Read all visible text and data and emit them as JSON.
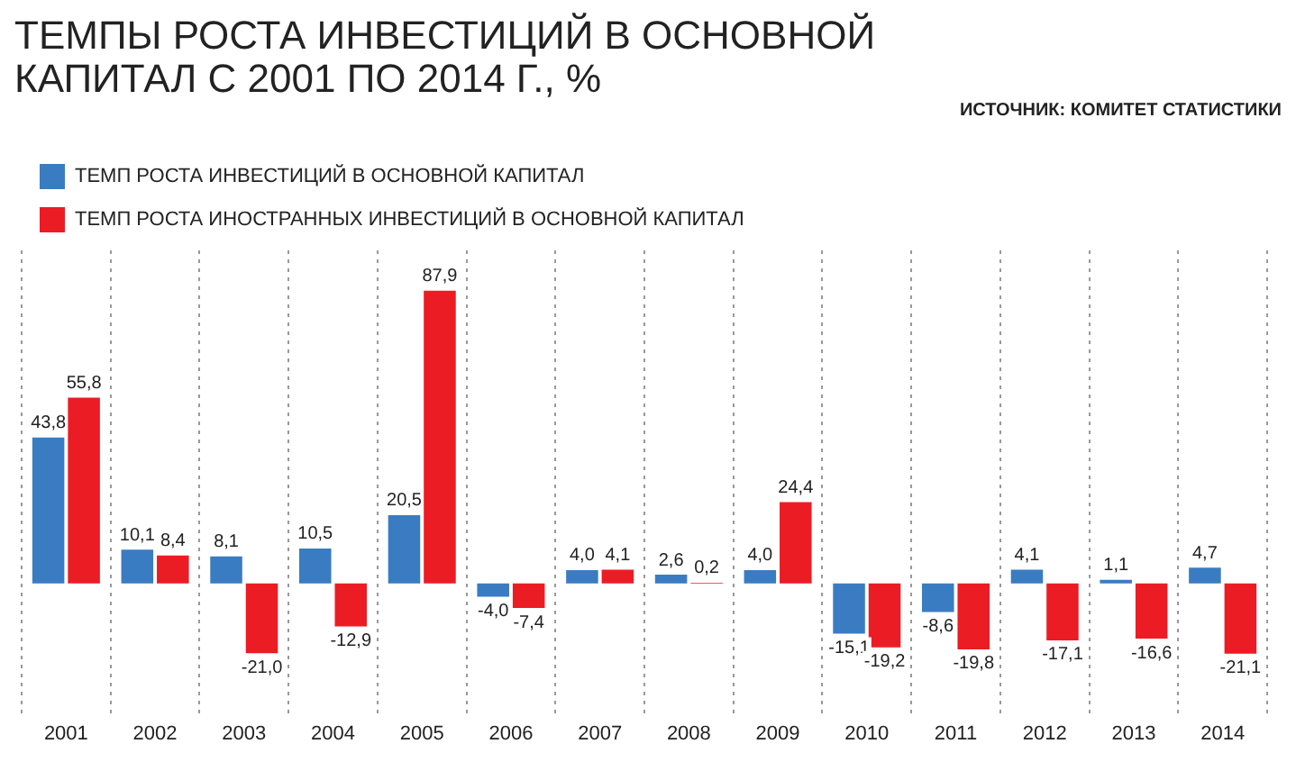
{
  "chart_data": {
    "type": "bar",
    "title": "ТЕМПЫ РОСТА ИНВЕСТИЦИЙ В ОСНОВНОЙ КАПИТАЛ С 2001 ПО 2014 Г., %",
    "annotations": [
      "ИСТОЧНИК: КОМИТЕТ СТАТИСТИКИ"
    ],
    "categories": [
      "2001",
      "2002",
      "2003",
      "2004",
      "2005",
      "2006",
      "2007",
      "2008",
      "2009",
      "2010",
      "2011",
      "2012",
      "2013",
      "2014"
    ],
    "series": [
      {
        "name": "ТЕМП РОСТА ИНВЕСТИЦИЙ В ОСНОВНОЙ КАПИТАЛ",
        "color": "#3a7cc1",
        "values": [
          43.8,
          10.1,
          8.1,
          10.5,
          20.5,
          -4.0,
          4.0,
          2.6,
          4.0,
          -15.1,
          -8.6,
          4.1,
          1.1,
          4.7
        ],
        "value_labels": [
          "43,8",
          "10,1",
          "8,1",
          "10,5",
          "20,5",
          "-4,0",
          "4,0",
          "2,6",
          "4,0",
          "-15,1",
          "-8,6",
          "4,1",
          "1,1",
          "4,7"
        ]
      },
      {
        "name": "ТЕМП РОСТА ИНОСТРАННЫХ ИНВЕСТИЦИЙ В ОСНОВНОЙ КАПИТАЛ",
        "color": "#ec1c24",
        "values": [
          55.8,
          8.4,
          -21.0,
          -12.9,
          87.9,
          -7.4,
          4.1,
          0.2,
          24.4,
          -19.2,
          -19.8,
          -17.1,
          -16.6,
          -21.1
        ],
        "value_labels": [
          "55,8",
          "8,4",
          "-21,0",
          "-12,9",
          "87,9",
          "-7,4",
          "4,1",
          "0,2",
          "24,4",
          "-19,2",
          "-19,8",
          "-17,1",
          "-16,6",
          "-21,1"
        ]
      }
    ],
    "grid": "x",
    "legend": "top"
  }
}
